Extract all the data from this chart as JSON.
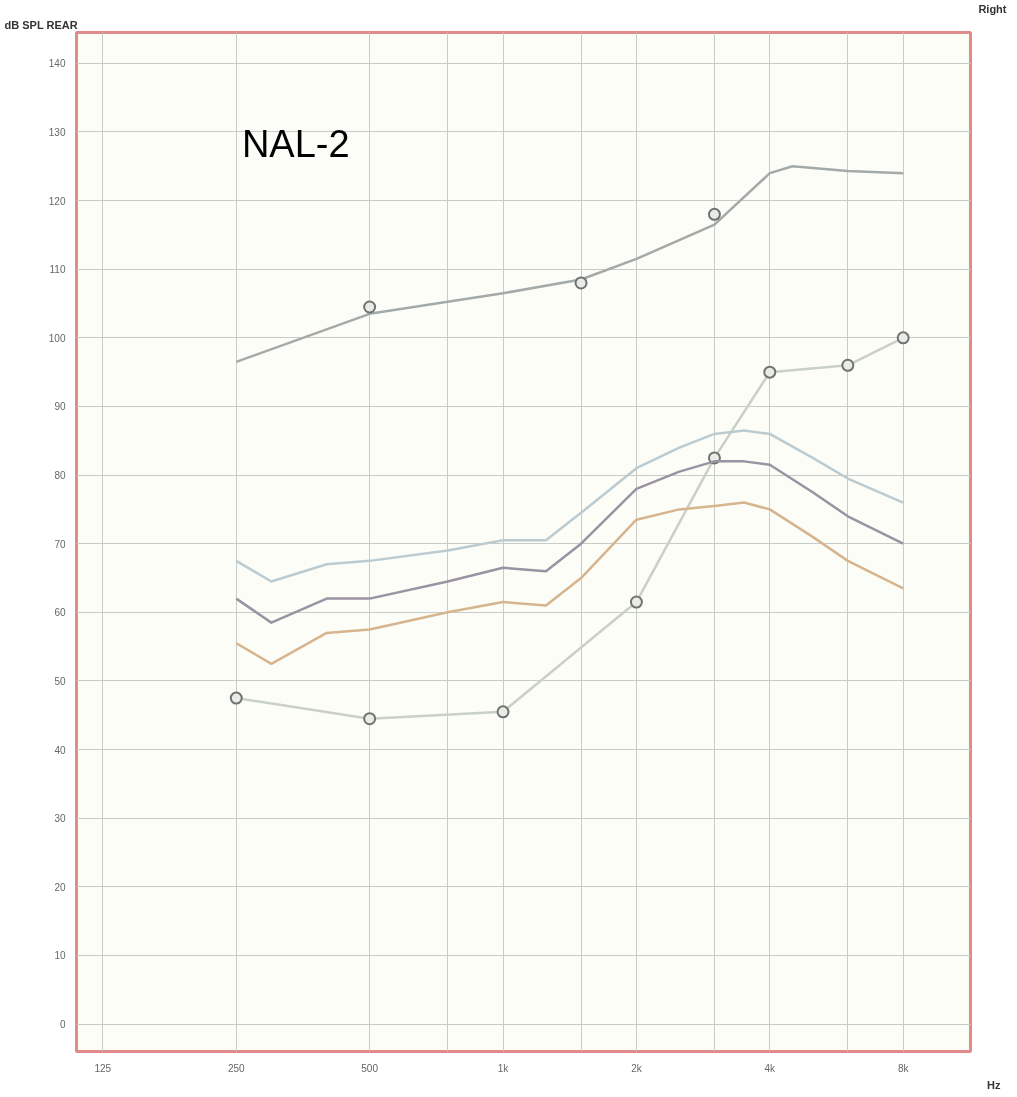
{
  "chart_data": {
    "type": "line",
    "xlabel": "Hz",
    "ylabel": "dB SPL REAR",
    "annotations": [
      "NAL-2",
      "Right"
    ],
    "log": "x",
    "grid": true,
    "marker": "none",
    "line_style": "solid",
    "xlim": [
      109,
      11350
    ],
    "ylim": [
      -4,
      144.5
    ],
    "xticks": [
      125,
      250,
      500,
      {
        "value": 750,
        "label": null
      },
      {
        "value": 1000,
        "label": "1k"
      },
      {
        "value": 1500,
        "label": null
      },
      {
        "value": 2000,
        "label": "2k"
      },
      {
        "value": 3000,
        "label": null
      },
      {
        "value": 4000,
        "label": "4k"
      },
      {
        "value": 6000,
        "label": null
      },
      {
        "value": 8000,
        "label": "8k"
      }
    ],
    "yticks": [
      0,
      10,
      20,
      30,
      40,
      50,
      60,
      70,
      80,
      90,
      100,
      110,
      120,
      130,
      140
    ],
    "series": [
      {
        "color": "#a3aaa8",
        "x": [
          250,
          500,
          1000,
          1500,
          2000,
          3000,
          4000,
          4500,
          6000,
          8000
        ],
        "values": [
          96.5,
          103.5,
          106.5,
          108.5,
          111.5,
          116.5,
          124,
          125,
          124.3,
          124
        ]
      },
      {
        "type": "scatter",
        "marker": "circle",
        "color": "#7a7e7a",
        "x": [
          500,
          1500,
          3000
        ],
        "values": [
          104.5,
          108,
          118
        ]
      },
      {
        "marker": "circle",
        "color": "#c9d0c6",
        "x": [
          250,
          500,
          1000,
          2000,
          3000,
          4000,
          6000,
          8000
        ],
        "values": [
          47.5,
          44.5,
          45.5,
          61.5,
          82.5,
          95,
          96,
          100
        ]
      },
      {
        "color": "#bccbd0",
        "x": [
          250,
          300,
          400,
          500,
          750,
          1000,
          1250,
          1500,
          2000,
          2500,
          3000,
          3500,
          4000,
          5000,
          6000,
          8000
        ],
        "values": [
          67.5,
          64.5,
          67,
          67.5,
          69,
          70.5,
          70.5,
          74.5,
          81,
          84,
          86,
          86.5,
          86,
          82.5,
          79.5,
          76
        ]
      },
      {
        "color": "#9a93a2",
        "x": [
          250,
          300,
          400,
          500,
          750,
          1000,
          1250,
          1500,
          2000,
          2500,
          3000,
          3500,
          4000,
          5000,
          6000,
          8000
        ],
        "values": [
          62,
          58.5,
          62,
          62,
          64.5,
          66.5,
          66,
          70,
          78,
          80.5,
          82,
          82,
          81.5,
          77.5,
          74,
          70
        ]
      },
      {
        "color": "#d6b58e",
        "x": [
          250,
          300,
          400,
          500,
          750,
          1000,
          1250,
          1500,
          2000,
          2500,
          3000,
          3500,
          4000,
          5000,
          6000,
          8000
        ],
        "values": [
          55.5,
          52.5,
          57,
          57.5,
          60,
          61.5,
          61,
          65,
          73.5,
          75,
          75.5,
          76,
          75,
          71,
          67.5,
          63.5
        ]
      }
    ]
  }
}
